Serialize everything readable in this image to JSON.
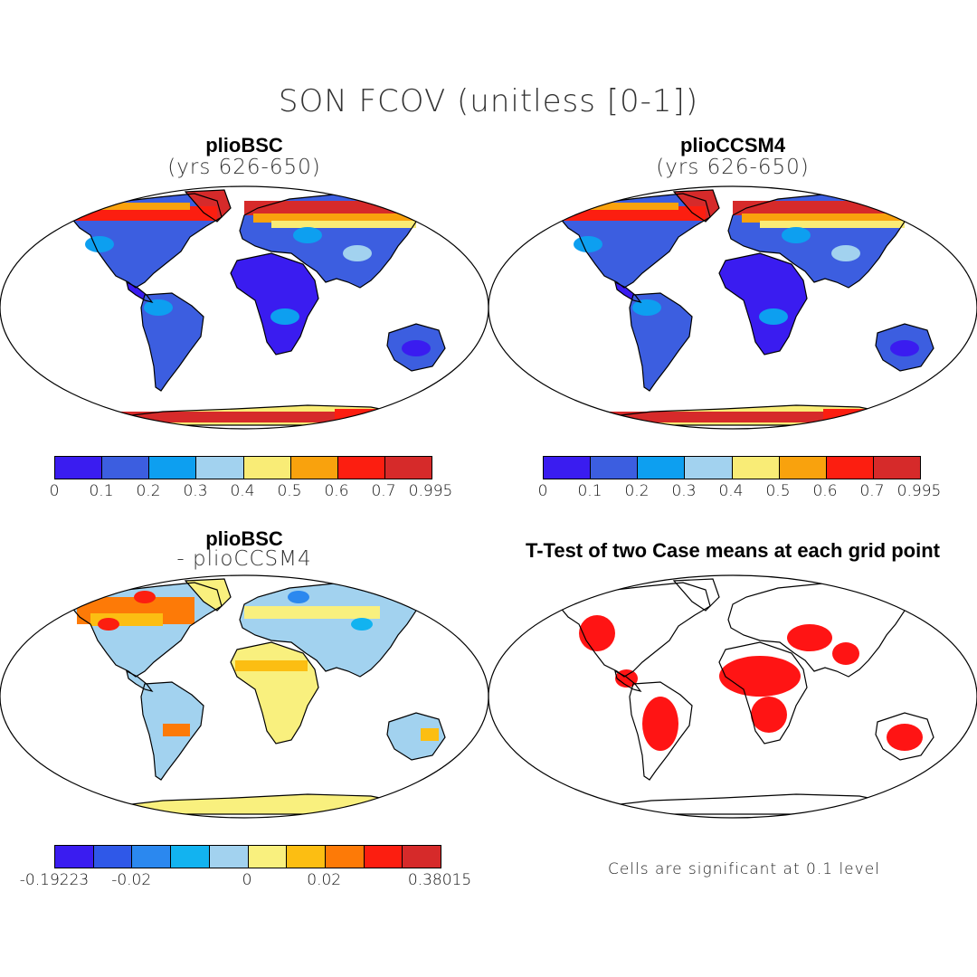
{
  "title": "SON FCOV (unitless [0-1])",
  "colors": {
    "absolute_scale": [
      "#3a1cf0",
      "#3c5ee0",
      "#0d9ff0",
      "#a2d2ef",
      "#f9ec76",
      "#f9a20d",
      "#fc1e10",
      "#d62a2a"
    ],
    "difference_scale": [
      "#3a1cf0",
      "#2f58e8",
      "#2b88ef",
      "#12b3f0",
      "#a2d2ef",
      "#f9f07e",
      "#fcbe12",
      "#fd7a07",
      "#fc1e10",
      "#d62a2a"
    ],
    "significant": "#ff0000",
    "coastline": "#000000"
  },
  "panels": {
    "top_left": {
      "title": "plioBSC",
      "subtitle": "(yrs 626-650)",
      "ticks": [
        "0",
        "0.1",
        "0.2",
        "0.3",
        "0.4",
        "0.5",
        "0.6",
        "0.7",
        "0.995"
      ]
    },
    "top_right": {
      "title": "plioCCSM4",
      "subtitle": "(yrs 626-650)",
      "ticks": [
        "0",
        "0.1",
        "0.2",
        "0.3",
        "0.4",
        "0.5",
        "0.6",
        "0.7",
        "0.995"
      ]
    },
    "bottom_left": {
      "title": "plioBSC",
      "subtitle": "- plioCCSM4",
      "ticks": [
        "-0.19223",
        "-0.02",
        "0",
        "0.02",
        "0.38015"
      ]
    },
    "bottom_right": {
      "title": "T-Test of two Case means at each grid point",
      "note": "Cells are significant at 0.1 level"
    }
  }
}
